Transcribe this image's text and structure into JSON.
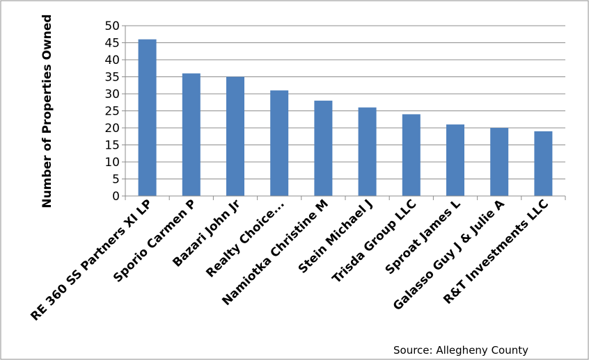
{
  "chart_data": {
    "type": "bar",
    "title": "",
    "xlabel": "",
    "ylabel": "Number of Properties Owned",
    "ylim": [
      0,
      50
    ],
    "yticks": [
      0,
      5,
      10,
      15,
      20,
      25,
      30,
      35,
      40,
      45,
      50
    ],
    "grid": true,
    "legend": "none",
    "bar_color": "#4F81BD",
    "categories": [
      "RE 360 SS Partners XI LP",
      "Sporio Carmen P",
      "Bazari John Jr",
      "Realty Choice...",
      "Namiotka Christine M",
      "Stein Michael J",
      "Trisda Group LLC",
      "Sproat James L",
      "Galasso Guy J & Julie A",
      "R&T Investments LLC"
    ],
    "values": [
      46,
      36,
      35,
      31,
      28,
      26,
      24,
      21,
      20,
      19
    ]
  },
  "source": "Source:  Allegheny County"
}
